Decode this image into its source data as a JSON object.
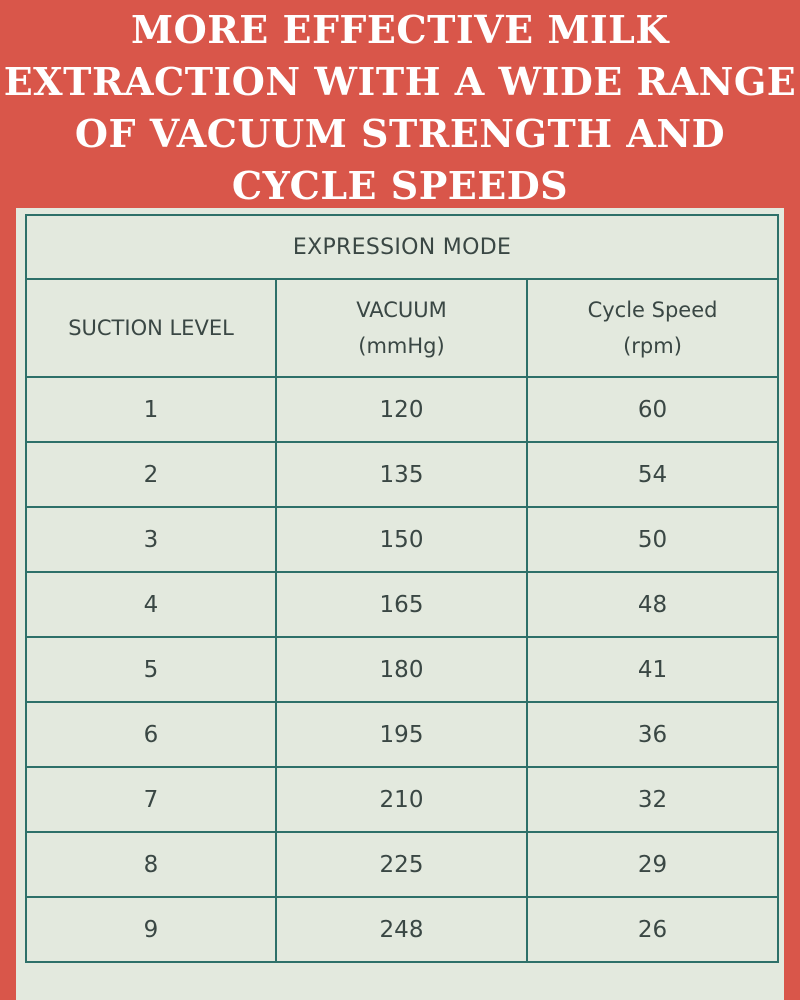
{
  "page": {
    "title_lines": [
      "MORE EFFECTIVE MILK",
      "EXTRACTION WITH A WIDE RANGE",
      "OF VACUUM STRENGTH AND",
      "CYCLE SPEEDS"
    ],
    "background_color": "#d9564a",
    "title_color": "#ffffff"
  },
  "table": {
    "mode_header": "EXPRESSION MODE",
    "columns": {
      "suction": {
        "line1": "SUCTION LEVEL"
      },
      "vacuum": {
        "line1": "VACUUM",
        "line2": "(mmHg)"
      },
      "cycle": {
        "line1": "Cycle Speed",
        "line2": "(rpm)"
      }
    },
    "rows": [
      {
        "level": "1",
        "vacuum": "120",
        "cycle": "60"
      },
      {
        "level": "2",
        "vacuum": "135",
        "cycle": "54"
      },
      {
        "level": "3",
        "vacuum": "150",
        "cycle": "50"
      },
      {
        "level": "4",
        "vacuum": "165",
        "cycle": "48"
      },
      {
        "level": "5",
        "vacuum": "180",
        "cycle": "41"
      },
      {
        "level": "6",
        "vacuum": "195",
        "cycle": "36"
      },
      {
        "level": "7",
        "vacuum": "210",
        "cycle": "32"
      },
      {
        "level": "8",
        "vacuum": "225",
        "cycle": "29"
      },
      {
        "level": "9",
        "vacuum": "248",
        "cycle": "26"
      }
    ],
    "panel_color": "#e3e9de",
    "border_color": "#2e7069",
    "text_color": "#3a4744"
  }
}
